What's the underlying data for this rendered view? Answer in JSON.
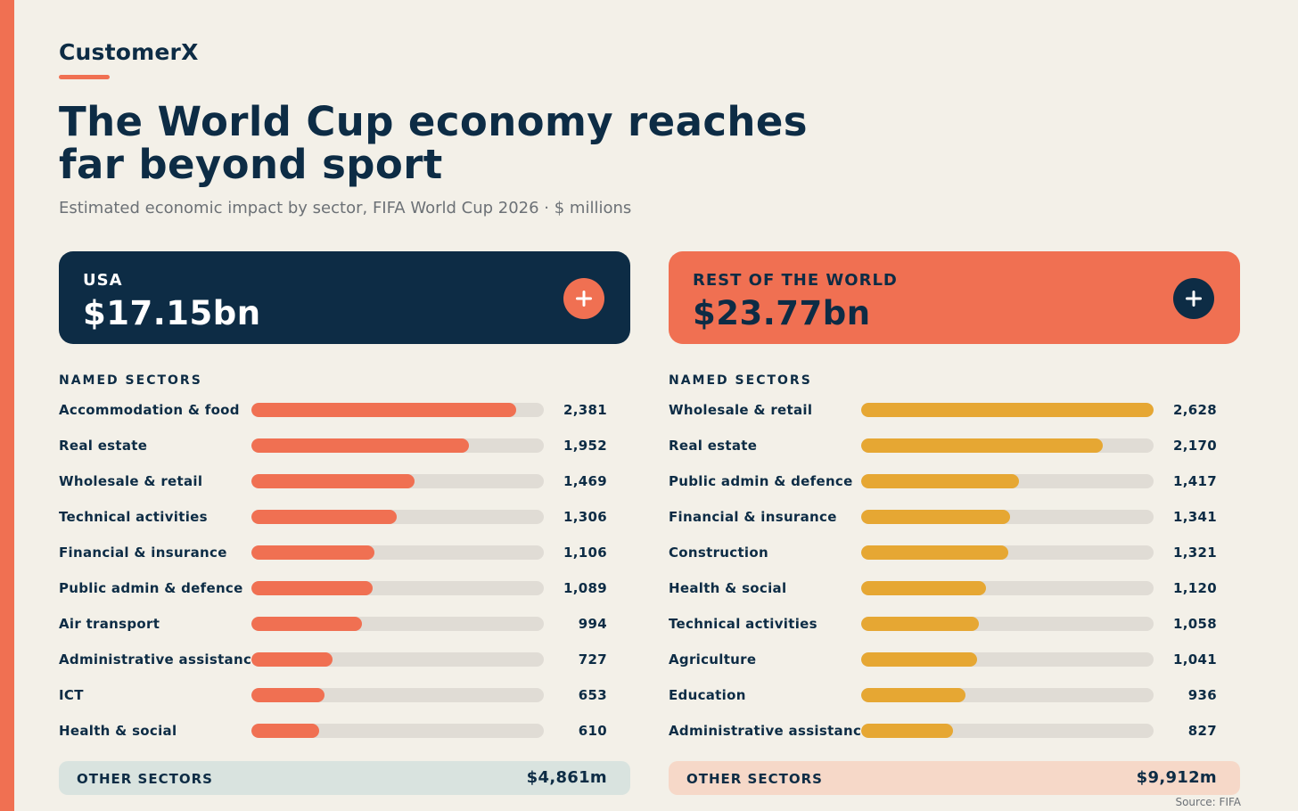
{
  "brand": "CustomerX",
  "title": "The World Cup economy reaches far beyond sport",
  "subtitle": "Estimated economic impact by sector, FIFA World Cup 2026 · $ millions",
  "source": "Source: FIFA",
  "colors": {
    "background": "#f3f0e8",
    "navy": "#0d2c45",
    "coral": "#f07052",
    "amber": "#e6a733",
    "track": "#e0dcd5"
  },
  "chart_data": [
    {
      "type": "bar",
      "orientation": "horizontal",
      "header_label": "USA",
      "header_value": "$17.15bn",
      "section_label": "NAMED SECTORS",
      "categories": [
        "Accommodation & food",
        "Real estate",
        "Wholesale & retail",
        "Technical activities",
        "Financial & insurance",
        "Public admin & defence",
        "Air transport",
        "Administrative assistance",
        "ICT",
        "Health & social"
      ],
      "values": [
        2381,
        1952,
        1469,
        1306,
        1106,
        1089,
        994,
        727,
        653,
        610
      ],
      "value_labels": [
        "2,381",
        "1,952",
        "1,469",
        "1,306",
        "1,106",
        "1,089",
        "994",
        "727",
        "653",
        "610"
      ],
      "xlim": [
        0,
        2628
      ],
      "other_label": "OTHER SECTORS",
      "other_value": "$4,861m"
    },
    {
      "type": "bar",
      "orientation": "horizontal",
      "header_label": "REST OF THE WORLD",
      "header_value": "$23.77bn",
      "section_label": "NAMED SECTORS",
      "categories": [
        "Wholesale & retail",
        "Real estate",
        "Public admin & defence",
        "Financial & insurance",
        "Construction",
        "Health & social",
        "Technical activities",
        "Agriculture",
        "Education",
        "Administrative assistance"
      ],
      "values": [
        2628,
        2170,
        1417,
        1341,
        1321,
        1120,
        1058,
        1041,
        936,
        827
      ],
      "value_labels": [
        "2,628",
        "2,170",
        "1,417",
        "1,341",
        "1,321",
        "1,120",
        "1,058",
        "1,041",
        "936",
        "827"
      ],
      "xlim": [
        0,
        2628
      ],
      "other_label": "OTHER SECTORS",
      "other_value": "$9,912m"
    }
  ]
}
